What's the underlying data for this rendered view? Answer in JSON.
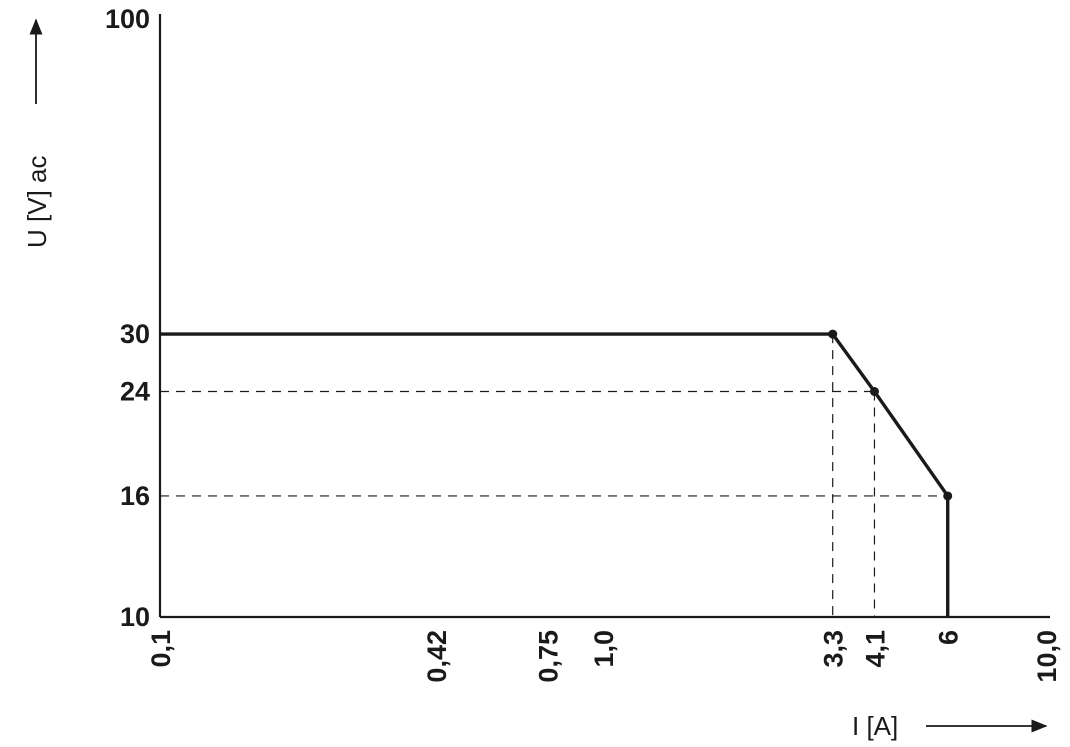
{
  "chart_data": {
    "type": "line",
    "xlabel": "I [A]",
    "ylabel": "U [V] ac",
    "x_scale": "log",
    "y_scale": "log",
    "xlim": [
      0.1,
      10.0
    ],
    "ylim": [
      10,
      100
    ],
    "x_ticks": [
      {
        "value": 0.1,
        "label": "0,1"
      },
      {
        "value": 0.42,
        "label": "0,42"
      },
      {
        "value": 0.75,
        "label": "0,75"
      },
      {
        "value": 1.0,
        "label": "1,0"
      },
      {
        "value": 3.3,
        "label": "3,3"
      },
      {
        "value": 4.1,
        "label": "4,1"
      },
      {
        "value": 6,
        "label": "6"
      },
      {
        "value": 10.0,
        "label": "10,0"
      }
    ],
    "y_ticks": [
      {
        "value": 10,
        "label": "10"
      },
      {
        "value": 16,
        "label": "16"
      },
      {
        "value": 24,
        "label": "24"
      },
      {
        "value": 30,
        "label": "30"
      },
      {
        "value": 100,
        "label": "100"
      }
    ],
    "series": [
      {
        "x": [
          0.1,
          3.3,
          4.1,
          6,
          6
        ],
        "y": [
          30,
          30,
          24,
          16,
          10
        ]
      }
    ],
    "markers": [
      {
        "x": 3.3,
        "y": 30
      },
      {
        "x": 4.1,
        "y": 24
      },
      {
        "x": 6,
        "y": 16
      }
    ],
    "reference_lines": [
      {
        "x": 3.3,
        "y": 30
      },
      {
        "x": 4.1,
        "y": 24
      },
      {
        "x": 6,
        "y": 16
      }
    ],
    "grid": false,
    "colors": {
      "ink": "#1a1a1a",
      "background": "#ffffff"
    }
  }
}
